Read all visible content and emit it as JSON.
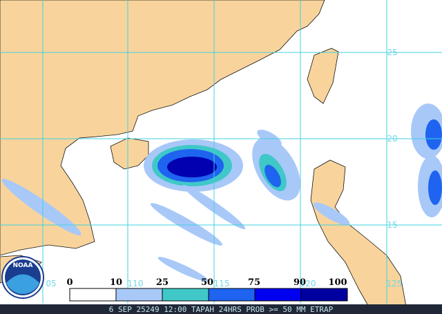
{
  "map": {
    "lat_labels": [
      "25",
      "20",
      "15"
    ],
    "lon_labels": [
      "05",
      "110",
      "115",
      "120",
      "125"
    ],
    "legend": {
      "labels": [
        "0",
        "10",
        "25",
        "50",
        "75",
        "90",
        "100"
      ]
    },
    "logo": "NOAA",
    "footer": "6 SEP 25249 12:00 TAPAH 24HRS PROB >= 50 MM ETRAP"
  }
}
